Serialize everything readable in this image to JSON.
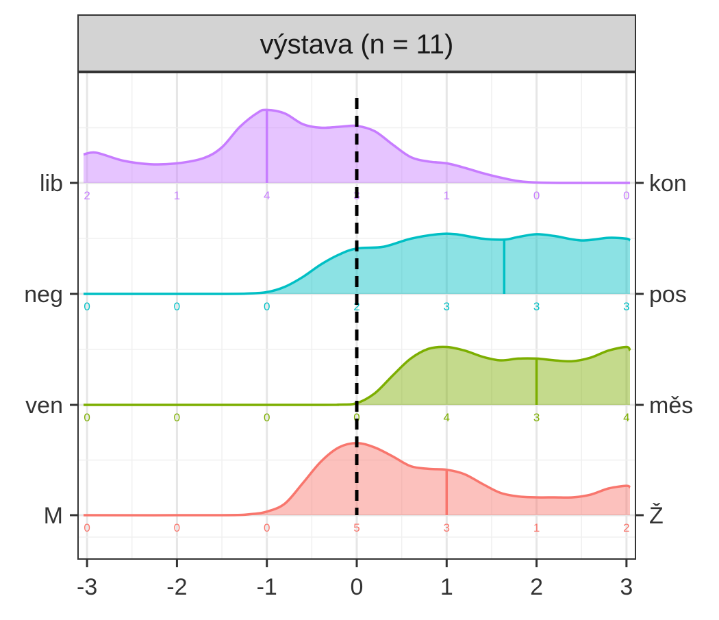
{
  "chart_data": {
    "type": "area",
    "title": "výstava (n = 11)",
    "xlim": [
      -3.1,
      3.1
    ],
    "x_ticks": [
      -3,
      -2,
      -1,
      0,
      1,
      2,
      3
    ],
    "x_tick_labels": [
      "-3",
      "-2",
      "-1",
      "0",
      "1",
      "2",
      "3"
    ],
    "reference_line_x": 0,
    "grid": true,
    "count_positions": [
      -3,
      -2,
      -1,
      0,
      1,
      2,
      3
    ],
    "rows": [
      {
        "left_label": "lib",
        "right_label": "kon",
        "color": "#C77CFF",
        "fill": "#E0BEFB",
        "mean": -1.0,
        "counts": [
          2,
          1,
          4,
          3,
          1,
          0,
          0
        ],
        "curve": [
          [
            -3.1,
            0.32
          ],
          [
            -2.9,
            0.34
          ],
          [
            -2.6,
            0.25
          ],
          [
            -2.3,
            0.21
          ],
          [
            -2.0,
            0.22
          ],
          [
            -1.7,
            0.28
          ],
          [
            -1.5,
            0.4
          ],
          [
            -1.3,
            0.63
          ],
          [
            -1.1,
            0.79
          ],
          [
            -1.0,
            0.82
          ],
          [
            -0.8,
            0.78
          ],
          [
            -0.6,
            0.66
          ],
          [
            -0.4,
            0.62
          ],
          [
            -0.2,
            0.63
          ],
          [
            0.0,
            0.64
          ],
          [
            0.2,
            0.58
          ],
          [
            0.4,
            0.43
          ],
          [
            0.6,
            0.29
          ],
          [
            0.8,
            0.24
          ],
          [
            1.0,
            0.22
          ],
          [
            1.2,
            0.17
          ],
          [
            1.4,
            0.11
          ],
          [
            1.6,
            0.06
          ],
          [
            1.8,
            0.02
          ],
          [
            2.0,
            0.005
          ],
          [
            2.3,
            0.0
          ],
          [
            3.1,
            0.0
          ]
        ]
      },
      {
        "left_label": "neg",
        "right_label": "pos",
        "color": "#00BFC4",
        "fill": "#A0E0E2",
        "mean": 1.64,
        "counts": [
          0,
          0,
          0,
          2,
          3,
          3,
          3
        ],
        "curve": [
          [
            -3.1,
            0.0
          ],
          [
            -1.5,
            0.0
          ],
          [
            -1.2,
            0.005
          ],
          [
            -1.0,
            0.02
          ],
          [
            -0.8,
            0.08
          ],
          [
            -0.6,
            0.19
          ],
          [
            -0.4,
            0.33
          ],
          [
            -0.2,
            0.44
          ],
          [
            0.0,
            0.51
          ],
          [
            0.3,
            0.53
          ],
          [
            0.6,
            0.62
          ],
          [
            0.9,
            0.67
          ],
          [
            1.1,
            0.67
          ],
          [
            1.4,
            0.62
          ],
          [
            1.64,
            0.61
          ],
          [
            1.8,
            0.64
          ],
          [
            2.0,
            0.67
          ],
          [
            2.2,
            0.65
          ],
          [
            2.5,
            0.6
          ],
          [
            2.8,
            0.63
          ],
          [
            3.0,
            0.62
          ],
          [
            3.1,
            0.6
          ]
        ]
      },
      {
        "left_label": "ven",
        "right_label": "měs",
        "color": "#7CAE00",
        "fill": "#C4DA97",
        "mean": 2.0,
        "counts": [
          0,
          0,
          0,
          0,
          4,
          3,
          4
        ],
        "curve": [
          [
            -3.1,
            0.0
          ],
          [
            -0.5,
            0.0
          ],
          [
            -0.2,
            0.003
          ],
          [
            0.0,
            0.02
          ],
          [
            0.2,
            0.13
          ],
          [
            0.4,
            0.33
          ],
          [
            0.6,
            0.52
          ],
          [
            0.8,
            0.63
          ],
          [
            1.0,
            0.65
          ],
          [
            1.2,
            0.61
          ],
          [
            1.4,
            0.54
          ],
          [
            1.6,
            0.5
          ],
          [
            1.8,
            0.52
          ],
          [
            2.0,
            0.52
          ],
          [
            2.2,
            0.5
          ],
          [
            2.4,
            0.49
          ],
          [
            2.6,
            0.53
          ],
          [
            2.8,
            0.61
          ],
          [
            3.0,
            0.65
          ],
          [
            3.1,
            0.61
          ]
        ]
      },
      {
        "left_label": "M",
        "right_label": "Ž",
        "color": "#F8766D",
        "fill": "#F8C0BD",
        "mean": 1.0,
        "counts": [
          0,
          0,
          0,
          5,
          3,
          1,
          2
        ],
        "curve": [
          [
            -3.1,
            0.0
          ],
          [
            -1.5,
            0.0
          ],
          [
            -1.2,
            0.01
          ],
          [
            -1.0,
            0.04
          ],
          [
            -0.8,
            0.13
          ],
          [
            -0.6,
            0.36
          ],
          [
            -0.4,
            0.6
          ],
          [
            -0.2,
            0.76
          ],
          [
            0.0,
            0.81
          ],
          [
            0.2,
            0.76
          ],
          [
            0.4,
            0.66
          ],
          [
            0.6,
            0.55
          ],
          [
            0.8,
            0.52
          ],
          [
            1.0,
            0.51
          ],
          [
            1.2,
            0.46
          ],
          [
            1.4,
            0.35
          ],
          [
            1.6,
            0.25
          ],
          [
            1.8,
            0.21
          ],
          [
            2.0,
            0.2
          ],
          [
            2.2,
            0.2
          ],
          [
            2.4,
            0.2
          ],
          [
            2.6,
            0.23
          ],
          [
            2.8,
            0.3
          ],
          [
            3.0,
            0.33
          ],
          [
            3.1,
            0.31
          ]
        ]
      }
    ]
  }
}
